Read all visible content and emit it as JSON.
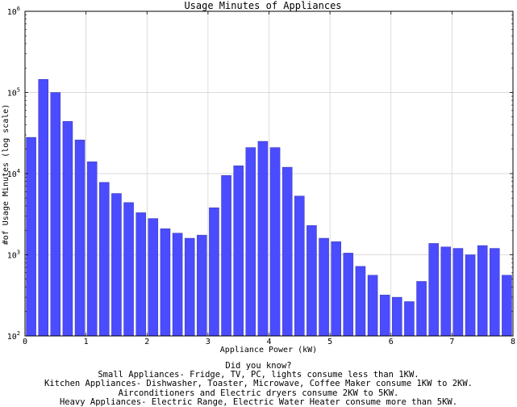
{
  "chart_data": {
    "type": "bar",
    "title": "Usage Minutes of Appliances",
    "xlabel": "Appliance Power (kW)",
    "ylabel": "#of Usage Minutes (log scale)",
    "xlim": [
      0,
      8
    ],
    "ylim": [
      100,
      1000000
    ],
    "yscale": "log",
    "grid": true,
    "bar_color": "#4b4bff",
    "bar_edge_color": "#2a2a9a",
    "bar_width": 0.16,
    "x_ticks": [
      "0",
      "1",
      "2",
      "3",
      "4",
      "5",
      "6",
      "7",
      "8"
    ],
    "y_ticks": [
      {
        "value": 100,
        "base": "10",
        "exp": "2"
      },
      {
        "value": 1000,
        "base": "10",
        "exp": "3"
      },
      {
        "value": 10000,
        "base": "10",
        "exp": "4"
      },
      {
        "value": 100000,
        "base": "10",
        "exp": "5"
      },
      {
        "value": 1000000,
        "base": "10",
        "exp": "6"
      }
    ],
    "x": [
      0.1,
      0.3,
      0.5,
      0.7,
      0.9,
      1.1,
      1.3,
      1.5,
      1.7,
      1.9,
      2.1,
      2.3,
      2.5,
      2.7,
      2.9,
      3.1,
      3.3,
      3.5,
      3.7,
      3.9,
      4.1,
      4.3,
      4.5,
      4.7,
      4.9,
      5.1,
      5.3,
      5.5,
      5.7,
      5.9,
      6.1,
      6.3,
      6.5,
      6.7,
      6.9,
      7.1,
      7.3,
      7.5,
      7.7,
      7.9
    ],
    "values": [
      28000,
      145000,
      100000,
      44000,
      26000,
      14000,
      7800,
      5700,
      4400,
      3300,
      2800,
      2100,
      1850,
      1600,
      1750,
      3800,
      9500,
      12500,
      21000,
      25000,
      21000,
      12000,
      5300,
      2300,
      1600,
      1450,
      1050,
      720,
      560,
      320,
      300,
      265,
      470,
      1380,
      1250,
      1200,
      1000,
      1300,
      1200,
      560
    ]
  },
  "caption": {
    "lines": [
      "Did you know?",
      "Small Appliances- Fridge, TV, PC, lights  consume less than 1KW.",
      "Kitchen Appliances- Dishwasher, Toaster, Microwave, Coffee Maker consume 1KW to 2KW.",
      "Airconditioners and Electric dryers consume 2KW to 5KW.",
      "Heavy Appliances- Electric Range, Electric Water Heater consume more than 5KW."
    ]
  }
}
